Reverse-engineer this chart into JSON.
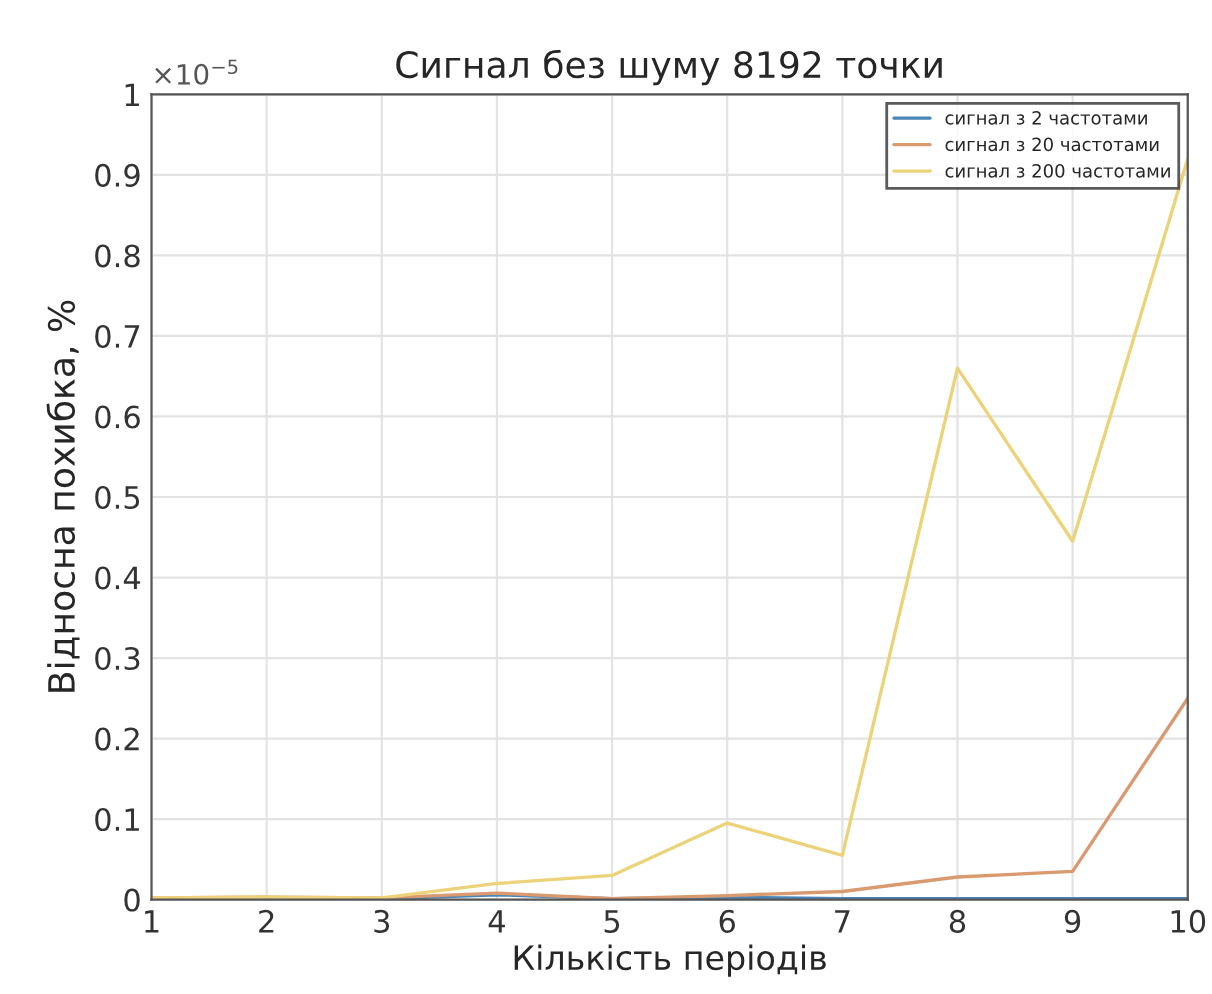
{
  "chart_data": {
    "type": "line",
    "title": "Сигнал без шуму 8192 точки",
    "xlabel": "Кількість періодів",
    "ylabel": "Відносна похибка, %",
    "annotations": [
      "×10$^{−5}$"
    ],
    "x": [
      1,
      2,
      3,
      4,
      5,
      6,
      7,
      8,
      9,
      10
    ],
    "series": [
      {
        "name": "сигнал з 2 частотами",
        "color": "#4a86b8",
        "values": [
          0.001,
          0.002,
          0.001,
          0.006,
          0.001,
          0.003,
          0.001,
          0.001,
          0.001,
          0.001
        ]
      },
      {
        "name": "сигнал з 20 частотами",
        "color": "#d99a70",
        "values": [
          0.002,
          0.003,
          0.002,
          0.008,
          0.001,
          0.005,
          0.01,
          0.028,
          0.035,
          0.25
        ]
      },
      {
        "name": "сигнал з 200 частотами",
        "color": "#ecd37a",
        "values": [
          0.002,
          0.003,
          0.002,
          0.02,
          0.03,
          0.095,
          0.055,
          0.66,
          0.445,
          0.92
        ]
      }
    ],
    "xlim": [
      1,
      10
    ],
    "xticks": [
      1,
      2,
      3,
      4,
      5,
      6,
      7,
      8,
      9,
      10
    ],
    "ylim": [
      0,
      1
    ],
    "yticks": [
      0,
      0.1,
      0.2,
      0.3,
      0.4,
      0.5,
      0.6,
      0.7,
      0.8,
      0.9,
      1
    ],
    "grid": true,
    "legend": "top right",
    "marker": "none",
    "line_style": "solid"
  }
}
